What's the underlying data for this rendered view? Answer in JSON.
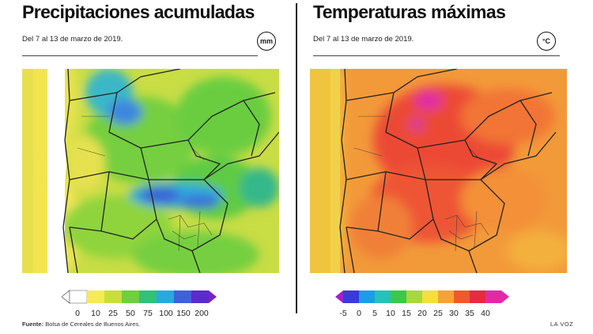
{
  "precipitation": {
    "title": "Precipitaciones acumuladas",
    "subtitle": "Del 7 al 13 de marzo de 2019.",
    "unit": "mm",
    "legend": {
      "ticks": [
        "0",
        "10",
        "25",
        "50",
        "75",
        "100",
        "150",
        "200"
      ],
      "colors": [
        "#ffffff",
        "#f5ea5a",
        "#c8dd3f",
        "#6fcf3d",
        "#34c079",
        "#2aa8e0",
        "#3e62d6",
        "#5a2cc8"
      ]
    }
  },
  "temperature": {
    "title": "Temperaturas máximas",
    "subtitle": "Del 7 al 13 de marzo de 2019.",
    "unit": "°C",
    "legend": {
      "ticks": [
        "-5",
        "0",
        "5",
        "10",
        "15",
        "20",
        "25",
        "30",
        "35",
        "40"
      ],
      "colors": [
        "#a020c8",
        "#3a3ad8",
        "#1e9ce6",
        "#28c0b8",
        "#3cc84a",
        "#a8d840",
        "#f2e040",
        "#f6a23a",
        "#ee5a2e",
        "#e82a40",
        "#e22aa8"
      ]
    }
  },
  "footer": {
    "source_label": "Fuente:",
    "source_text": "Bolsa de Cereales de Buenos Aires.",
    "brand": "LA VOZ"
  }
}
